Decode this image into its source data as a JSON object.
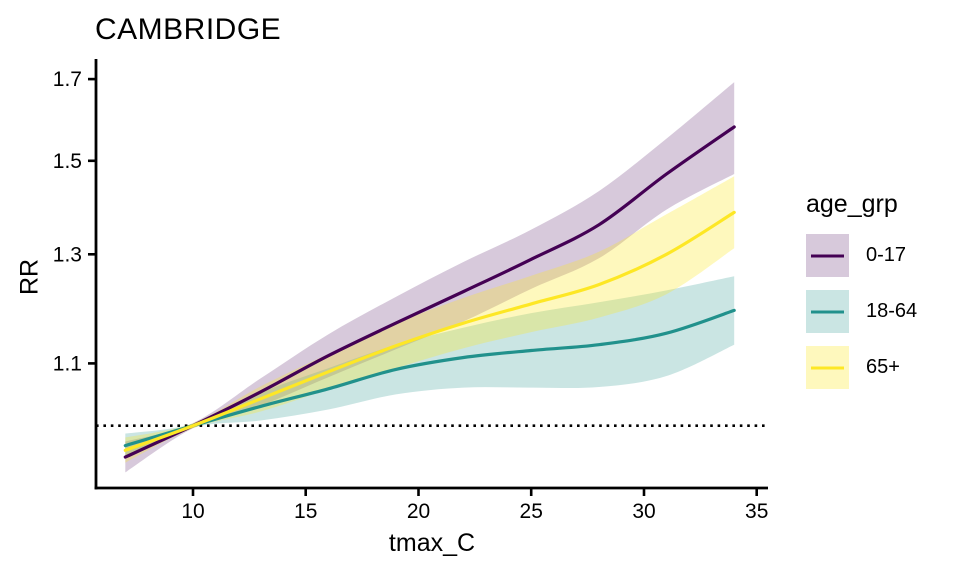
{
  "chart_data": {
    "type": "line",
    "title": "CAMBRIDGE",
    "xlabel": "tmax_C",
    "ylabel": "RR",
    "y_scale": "log",
    "x": [
      7,
      10,
      13,
      16,
      19,
      22,
      25,
      28,
      31,
      34
    ],
    "x_ticks": [
      10,
      15,
      20,
      25,
      30,
      35
    ],
    "y_ticks": [
      1.1,
      1.3,
      1.5,
      1.7
    ],
    "xlim": [
      5.7,
      35.5
    ],
    "ylim": [
      0.909,
      1.753
    ],
    "reference_line_y": 1.0,
    "reference_line_style": "dotted",
    "grid": "off",
    "legend_title": "age_grp",
    "legend_position": "right",
    "series": [
      {
        "name": "0-17",
        "color": "#440154",
        "band_color": "rgba(68,1,84,0.21)",
        "rr": [
          0.953,
          1.0,
          1.053,
          1.113,
          1.17,
          1.228,
          1.29,
          1.36,
          1.47,
          1.58
        ],
        "lower": [
          0.931,
          0.996,
          1.031,
          1.077,
          1.124,
          1.173,
          1.233,
          1.292,
          1.392,
          1.47
        ],
        "upper": [
          0.976,
          1.004,
          1.075,
          1.15,
          1.218,
          1.285,
          1.35,
          1.432,
          1.552,
          1.692
        ]
      },
      {
        "name": "18-64",
        "color": "#21918c",
        "band_color": "rgba(33,145,140,0.24)",
        "rr": [
          0.97,
          1.0,
          1.03,
          1.058,
          1.09,
          1.11,
          1.122,
          1.132,
          1.152,
          1.193
        ],
        "lower": [
          0.952,
          0.997,
          1.008,
          1.025,
          1.049,
          1.06,
          1.06,
          1.061,
          1.079,
          1.132
        ],
        "upper": [
          0.988,
          1.003,
          1.052,
          1.092,
          1.132,
          1.162,
          1.188,
          1.208,
          1.23,
          1.257
        ]
      },
      {
        "name": "65+",
        "color": "#fde725",
        "band_color": "rgba(253,231,37,0.30)",
        "rr": [
          0.963,
          1.0,
          1.042,
          1.086,
          1.13,
          1.17,
          1.205,
          1.241,
          1.3,
          1.386
        ],
        "lower": [
          0.945,
          0.996,
          1.022,
          1.057,
          1.092,
          1.126,
          1.154,
          1.18,
          1.223,
          1.312
        ],
        "upper": [
          0.982,
          1.004,
          1.062,
          1.116,
          1.17,
          1.216,
          1.258,
          1.305,
          1.382,
          1.465
        ]
      }
    ],
    "axis_color": "#000000",
    "text_color": "#000000"
  }
}
